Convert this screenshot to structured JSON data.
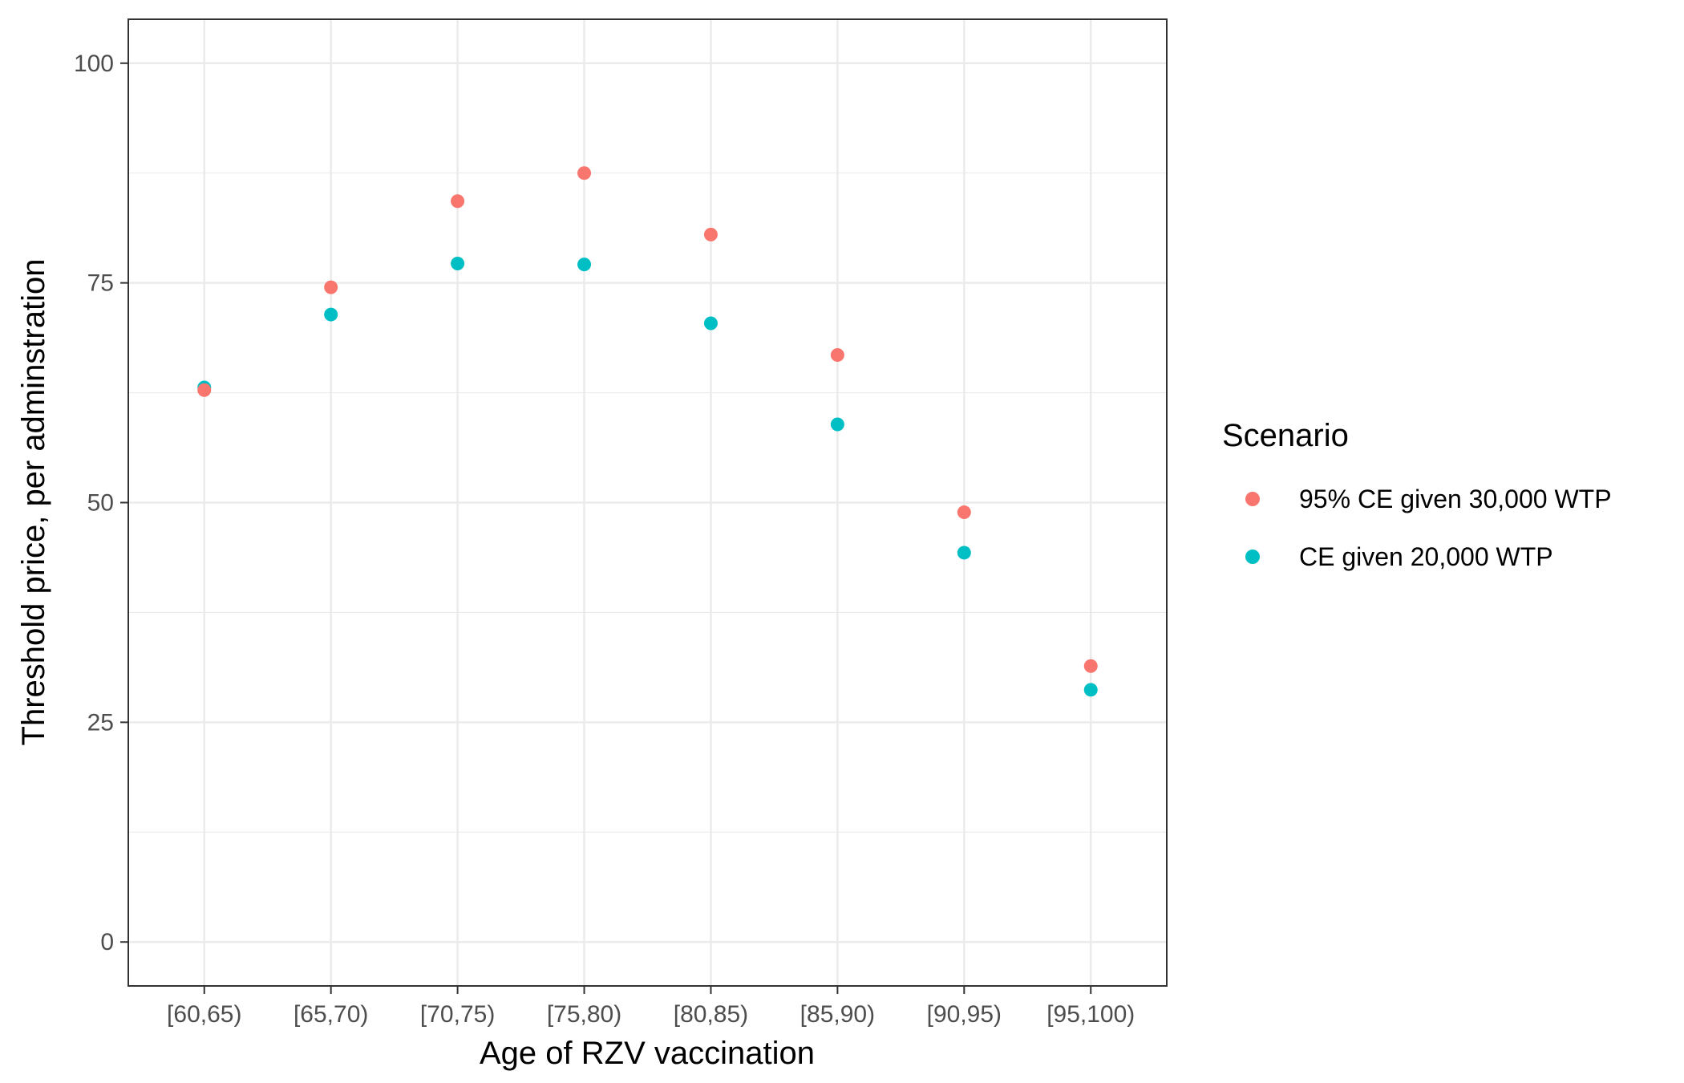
{
  "chart_data": {
    "type": "scatter",
    "categories": [
      "[60,65)",
      "[65,70)",
      "[70,75)",
      "[75,80)",
      "[80,85)",
      "[85,90)",
      "[90,95)",
      "[95,100)"
    ],
    "series": [
      {
        "name": "95% CE given 30,000 WTP",
        "color": "#F8766D",
        "values": [
          62.8,
          74.5,
          84.3,
          87.5,
          80.5,
          66.8,
          48.9,
          31.4
        ]
      },
      {
        "name": "CE given 20,000 WTP",
        "color": "#00BFC4",
        "values": [
          63.1,
          71.4,
          77.2,
          77.1,
          70.4,
          58.9,
          44.3,
          28.7
        ]
      }
    ],
    "xlabel": "Age of RZV vaccination",
    "ylabel": "Threshold price, per adminstration",
    "ylim": [
      -5,
      105
    ],
    "yticks": [
      0,
      25,
      50,
      75,
      100
    ],
    "grid": true,
    "legend": {
      "title": "Scenario",
      "placement": "right"
    }
  }
}
